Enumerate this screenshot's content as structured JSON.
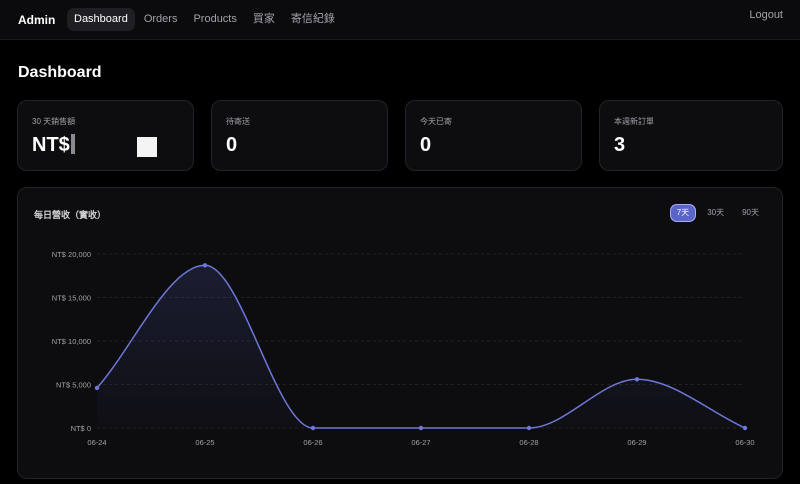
{
  "nav": {
    "brand": "Admin",
    "links": [
      {
        "label": "Dashboard",
        "active": true
      },
      {
        "label": "Orders",
        "active": false
      },
      {
        "label": "Products",
        "active": false
      },
      {
        "label": "買家",
        "active": false
      },
      {
        "label": "寄信紀錄",
        "active": false
      }
    ],
    "logout": "Logout"
  },
  "page": {
    "title": "Dashboard"
  },
  "stats": [
    {
      "label": "30 天銷售額",
      "value": "NT$"
    },
    {
      "label": "待寄送",
      "value": "0"
    },
    {
      "label": "今天已寄",
      "value": "0"
    },
    {
      "label": "本週新訂單",
      "value": "3"
    }
  ],
  "chart_panel": {
    "title": "每日營收（實收）",
    "ranges": [
      {
        "label": "7天",
        "active": true
      },
      {
        "label": "30天",
        "active": false
      },
      {
        "label": "90天",
        "active": false
      }
    ]
  },
  "colors": {
    "accent": "#5b64c7",
    "line": "#6f78d8"
  },
  "chart_data": {
    "type": "area",
    "categories": [
      "06-24",
      "06-25",
      "06-26",
      "06-27",
      "06-28",
      "06-29",
      "06-30"
    ],
    "values": [
      4600,
      18700,
      0,
      0,
      0,
      5600,
      0
    ],
    "y_ticks": [
      0,
      5000,
      10000,
      15000,
      20000
    ],
    "y_tick_labels": [
      "NT$ 0",
      "NT$ 5,000",
      "NT$ 10,000",
      "NT$ 15,000",
      "NT$ 20,000"
    ],
    "ylim": [
      0,
      20000
    ],
    "grid": true,
    "title": "",
    "xlabel": "",
    "ylabel": ""
  }
}
